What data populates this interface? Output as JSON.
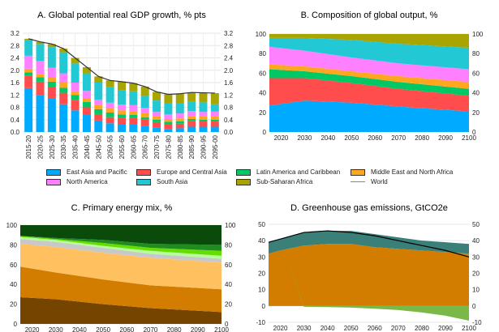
{
  "colors": {
    "East Asia and Pacific": "#00aaff",
    "Europe and Central Asia": "#ff4d4d",
    "Latin America and Caribbean": "#00c864",
    "Middle East and North Africa": "#ffa620",
    "North America": "#ff80ff",
    "South Asia": "#22c8d4",
    "Sub-Saharan Africa": "#a8a400",
    "World": "#888888"
  },
  "legend": [
    "East Asia and Pacific",
    "Europe and Central Asia",
    "Latin America and Caribbean",
    "Middle East and North Africa",
    "North America",
    "South Asia",
    "Sub-Saharan Africa",
    "World"
  ],
  "chart_data": [
    {
      "type": "bar",
      "stacked": true,
      "title": "A. Global potential real GDP growth, % pts",
      "categories": [
        "2015-20",
        "2020-25",
        "2025-30",
        "2030-35",
        "2035-40",
        "2040-45",
        "2045-50",
        "2050-55",
        "2055-60",
        "2060-65",
        "2065-70",
        "2070-75",
        "2075-80",
        "2080-85",
        "2085-90",
        "2090-95",
        "2095-00"
      ],
      "ylim": [
        0,
        3.2
      ],
      "yticks": [
        "0.0",
        "0.4",
        "0.8",
        "1.2",
        "1.6",
        "2.0",
        "2.4",
        "2.8",
        "3.2"
      ],
      "grid": true,
      "series": [
        {
          "name": "East Asia and Pacific",
          "values": [
            1.42,
            1.2,
            1.1,
            0.9,
            0.7,
            0.55,
            0.37,
            0.28,
            0.25,
            0.25,
            0.2,
            0.14,
            0.1,
            0.12,
            0.17,
            0.17,
            0.17
          ]
        },
        {
          "name": "Europe and Central Asia",
          "values": [
            0.4,
            0.43,
            0.37,
            0.37,
            0.33,
            0.25,
            0.21,
            0.2,
            0.22,
            0.22,
            0.2,
            0.18,
            0.15,
            0.15,
            0.18,
            0.17,
            0.17
          ]
        },
        {
          "name": "Latin America and Caribbean",
          "values": [
            0.11,
            0.14,
            0.16,
            0.16,
            0.17,
            0.17,
            0.16,
            0.15,
            0.1,
            0.09,
            0.08,
            0.08,
            0.08,
            0.08,
            0.07,
            0.06,
            0.06
          ]
        },
        {
          "name": "Middle East and North Africa",
          "values": [
            0.12,
            0.11,
            0.14,
            0.17,
            0.12,
            0.13,
            0.13,
            0.13,
            0.13,
            0.12,
            0.14,
            0.1,
            0.09,
            0.09,
            0.1,
            0.1,
            0.1
          ]
        },
        {
          "name": "North America",
          "values": [
            0.42,
            0.42,
            0.31,
            0.3,
            0.28,
            0.23,
            0.18,
            0.19,
            0.19,
            0.19,
            0.16,
            0.15,
            0.15,
            0.16,
            0.16,
            0.15,
            0.16
          ]
        },
        {
          "name": "South Asia",
          "values": [
            0.5,
            0.55,
            0.67,
            0.68,
            0.62,
            0.57,
            0.55,
            0.5,
            0.47,
            0.45,
            0.39,
            0.37,
            0.35,
            0.32,
            0.3,
            0.31,
            0.24
          ]
        },
        {
          "name": "Sub-Saharan Africa",
          "values": [
            0.05,
            0.07,
            0.1,
            0.12,
            0.18,
            0.2,
            0.2,
            0.22,
            0.27,
            0.26,
            0.3,
            0.28,
            0.3,
            0.32,
            0.3,
            0.31,
            0.36
          ]
        }
      ],
      "line": {
        "name": "World",
        "values": [
          3.02,
          2.92,
          2.85,
          2.7,
          2.4,
          2.1,
          1.8,
          1.67,
          1.63,
          1.58,
          1.47,
          1.3,
          1.22,
          1.24,
          1.28,
          1.27,
          1.26
        ]
      }
    },
    {
      "type": "area",
      "stacked": true,
      "title": "B. Composition of global output, %",
      "x": [
        2015,
        2030,
        2050,
        2070,
        2100
      ],
      "xticks": [
        "2020",
        "2030",
        "2040",
        "2050",
        "2060",
        "2070",
        "2080",
        "2090",
        "2100"
      ],
      "ylim": [
        0,
        100
      ],
      "yticks": [
        "0",
        "20",
        "40",
        "60",
        "80",
        "100"
      ],
      "series": [
        {
          "name": "East Asia and Pacific",
          "values": [
            27,
            32,
            30,
            26,
            21
          ]
        },
        {
          "name": "Europe and Central Asia",
          "values": [
            28,
            23,
            20,
            18,
            16
          ]
        },
        {
          "name": "Latin America and Caribbean",
          "values": [
            9,
            7,
            7,
            7,
            7
          ]
        },
        {
          "name": "Middle East and North Africa",
          "values": [
            5,
            5,
            5,
            6,
            7
          ]
        },
        {
          "name": "North America",
          "values": [
            18,
            16,
            14,
            13,
            13
          ]
        },
        {
          "name": "South Asia",
          "values": [
            9,
            13,
            18,
            20,
            22
          ]
        },
        {
          "name": "Sub-Saharan Africa",
          "values": [
            4,
            4,
            6,
            10,
            14
          ]
        }
      ]
    },
    {
      "type": "area",
      "stacked": true,
      "title": "C. Primary energy mix, %",
      "x": [
        2015,
        2030,
        2050,
        2070,
        2100
      ],
      "xticks": [
        "2020",
        "2030",
        "2040",
        "2050",
        "2060",
        "2070",
        "2080",
        "2090",
        "2100"
      ],
      "ylim": [
        0,
        100
      ],
      "yticks": [
        "0",
        "20",
        "40",
        "60",
        "80",
        "100"
      ],
      "series": [
        {
          "color": "#754500",
          "values": [
            27,
            25,
            20,
            16,
            12
          ]
        },
        {
          "color": "#d27d00",
          "values": [
            31,
            27,
            25,
            23,
            23
          ]
        },
        {
          "color": "#ffc060",
          "values": [
            23,
            26,
            27,
            28,
            27
          ]
        },
        {
          "color": "#c8c8c8",
          "values": [
            5,
            5,
            5,
            4,
            4
          ]
        },
        {
          "color": "#b4ff9a",
          "values": [
            2,
            2,
            2,
            3,
            3
          ]
        },
        {
          "color": "#66dd00",
          "values": [
            1,
            1,
            3,
            3,
            5
          ]
        },
        {
          "color": "#1e8c1e",
          "values": [
            0,
            1,
            3,
            4,
            6
          ]
        },
        {
          "color": "#0a4a0a",
          "values": [
            11,
            13,
            15,
            19,
            20
          ]
        }
      ]
    },
    {
      "type": "area",
      "stacked": true,
      "title": "D. Greenhouse gas emissions, GtCO2e",
      "x": [
        2015,
        2020,
        2030,
        2040,
        2050,
        2060,
        2070,
        2080,
        2090,
        2100
      ],
      "xticks": [
        "2020",
        "2030",
        "2040",
        "2050",
        "2060",
        "2070",
        "2080",
        "2090",
        "2100"
      ],
      "ylim": [
        -10,
        50
      ],
      "yticks": [
        "-10",
        "0",
        "10",
        "20",
        "30",
        "40",
        "50"
      ],
      "series": [
        {
          "color": "#d27d00",
          "values": [
            32,
            34,
            37,
            38,
            38,
            36,
            35,
            34,
            33,
            32
          ]
        },
        {
          "color": "#3a7f78",
          "values": [
            7,
            7,
            8,
            8,
            8,
            8,
            7,
            6,
            6,
            6
          ]
        },
        {
          "color": "#7ab84a",
          "values": [
            0,
            0,
            -0.5,
            -0.7,
            -1,
            -1.7,
            -2.5,
            -4,
            -6,
            -9
          ]
        }
      ],
      "line": {
        "color": "#000000",
        "values": [
          39,
          41,
          45,
          46,
          45,
          43,
          40,
          37,
          34,
          30
        ]
      }
    }
  ]
}
